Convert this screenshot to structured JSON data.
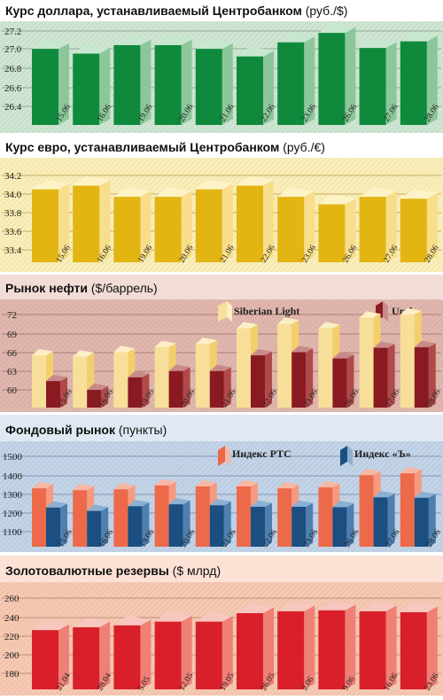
{
  "colors": {
    "green_bg": "#cfe6d3",
    "green_title_bg": "#ffffff",
    "green_dark": "#0f8a3c",
    "green_light": "#8cc79a",
    "green_top": "#c7e8cf",
    "gold_bg": "#fbefb9",
    "gold_dark": "#e2b513",
    "gold_light": "#f8de8a",
    "gold_top": "#fdf3c7",
    "oil_bg": "#e1b7ad",
    "oil_title_bg": "#f2dcd6",
    "oil_light": "#f7df9a",
    "oil_light_top": "#fcefc5",
    "oil_dark": "#8a1a22",
    "oil_dark_top": "#c98a8a",
    "stock_bg": "#c3d4e8",
    "stock_title_bg": "#e0e9f3",
    "stock_red": "#ec6a4a",
    "stock_red_top": "#f6b7a5",
    "stock_blue": "#1b4f82",
    "stock_blue_top": "#8bb0d2",
    "gold_res_bg": "#f7c9b3",
    "gold_res_title_bg": "#fbe2d4",
    "res_red": "#d9202a",
    "res_light": "#ee8076",
    "res_top": "#f8c7c0"
  },
  "chart_data": [
    {
      "type": "bar",
      "title": "Курс доллара, устанавливаемый Центробанком",
      "unit": "(руб./$)",
      "categories": [
        "15.06",
        "16.06",
        "19.06",
        "20.06",
        "21.06",
        "22.06",
        "23.06",
        "26.06",
        "27.06",
        "28.06"
      ],
      "series": [
        {
          "values": [
            27.01,
            26.96,
            27.05,
            27.05,
            27.01,
            26.93,
            27.08,
            27.18,
            27.02,
            27.09
          ]
        }
      ],
      "ylim": [
        26.4,
        27.2
      ],
      "yticks": [
        "27.2",
        "27.0",
        "26.8",
        "26.6",
        "26.4"
      ]
    },
    {
      "type": "bar",
      "title": "Курс евро, устанавливаемый Центробанком",
      "unit": "(руб./€)",
      "categories": [
        "15.06",
        "16.06",
        "19.06",
        "20.06",
        "21.06",
        "22.06",
        "23.06",
        "26.06",
        "27.06",
        "28.06"
      ],
      "series": [
        {
          "values": [
            34.05,
            34.09,
            33.97,
            33.97,
            34.05,
            34.09,
            33.97,
            33.89,
            33.97,
            33.95
          ]
        }
      ],
      "ylim": [
        33.4,
        34.2
      ],
      "yticks": [
        "34.2",
        "34.0",
        "33.8",
        "33.6",
        "33.4"
      ]
    },
    {
      "type": "bar",
      "title": "Рынок нефти",
      "unit": "($/баррель)",
      "categories": [
        "15.06",
        "16.06",
        "19.06",
        "20.06",
        "21.06",
        "22.06",
        "23.06",
        "26.06",
        "27.06",
        "28.06"
      ],
      "series": [
        {
          "name": "Siberian Light",
          "values": [
            65.5,
            65.3,
            66.0,
            66.8,
            67.3,
            69.8,
            70.5,
            69.8,
            71.5,
            72.0
          ]
        },
        {
          "name": "Urals",
          "values": [
            61.4,
            60.0,
            62.0,
            63.0,
            63.0,
            65.5,
            66.0,
            65.0,
            66.7,
            66.8
          ]
        }
      ],
      "ylim": [
        57,
        73
      ],
      "yticks": [
        "72",
        "69",
        "66",
        "63",
        "60"
      ]
    },
    {
      "type": "bar",
      "title": "Фондовый рынок",
      "unit": "(пункты)",
      "categories": [
        "15.06",
        "16.06",
        "19.06",
        "20.06",
        "21.06",
        "22.06",
        "23.06",
        "26.06",
        "27.06",
        "28.06"
      ],
      "series": [
        {
          "name": "Индекс РТС",
          "values": [
            1330,
            1320,
            1325,
            1345,
            1340,
            1340,
            1330,
            1335,
            1400,
            1410
          ]
        },
        {
          "name": "Индекс «Ъ»",
          "values": [
            1228,
            1210,
            1235,
            1245,
            1240,
            1232,
            1232,
            1230,
            1282,
            1280
          ]
        }
      ],
      "ylim": [
        1050,
        1520
      ],
      "yticks": [
        "1500",
        "1400",
        "1300",
        "1200",
        "1100"
      ]
    },
    {
      "type": "bar",
      "title": "Золотовалютные резервы",
      "unit": "($ млрд)",
      "categories": [
        "21.04",
        "28.04",
        "5.05",
        "12.05",
        "19.05",
        "26.05",
        "2.06",
        "9.06",
        "16.06",
        "23.06"
      ],
      "series": [
        {
          "values": [
            226,
            229,
            231,
            235,
            235,
            244,
            246,
            247,
            246,
            245
          ]
        }
      ],
      "ylim": [
        170,
        262
      ],
      "yticks": [
        "260",
        "240",
        "220",
        "200",
        "180"
      ]
    }
  ]
}
